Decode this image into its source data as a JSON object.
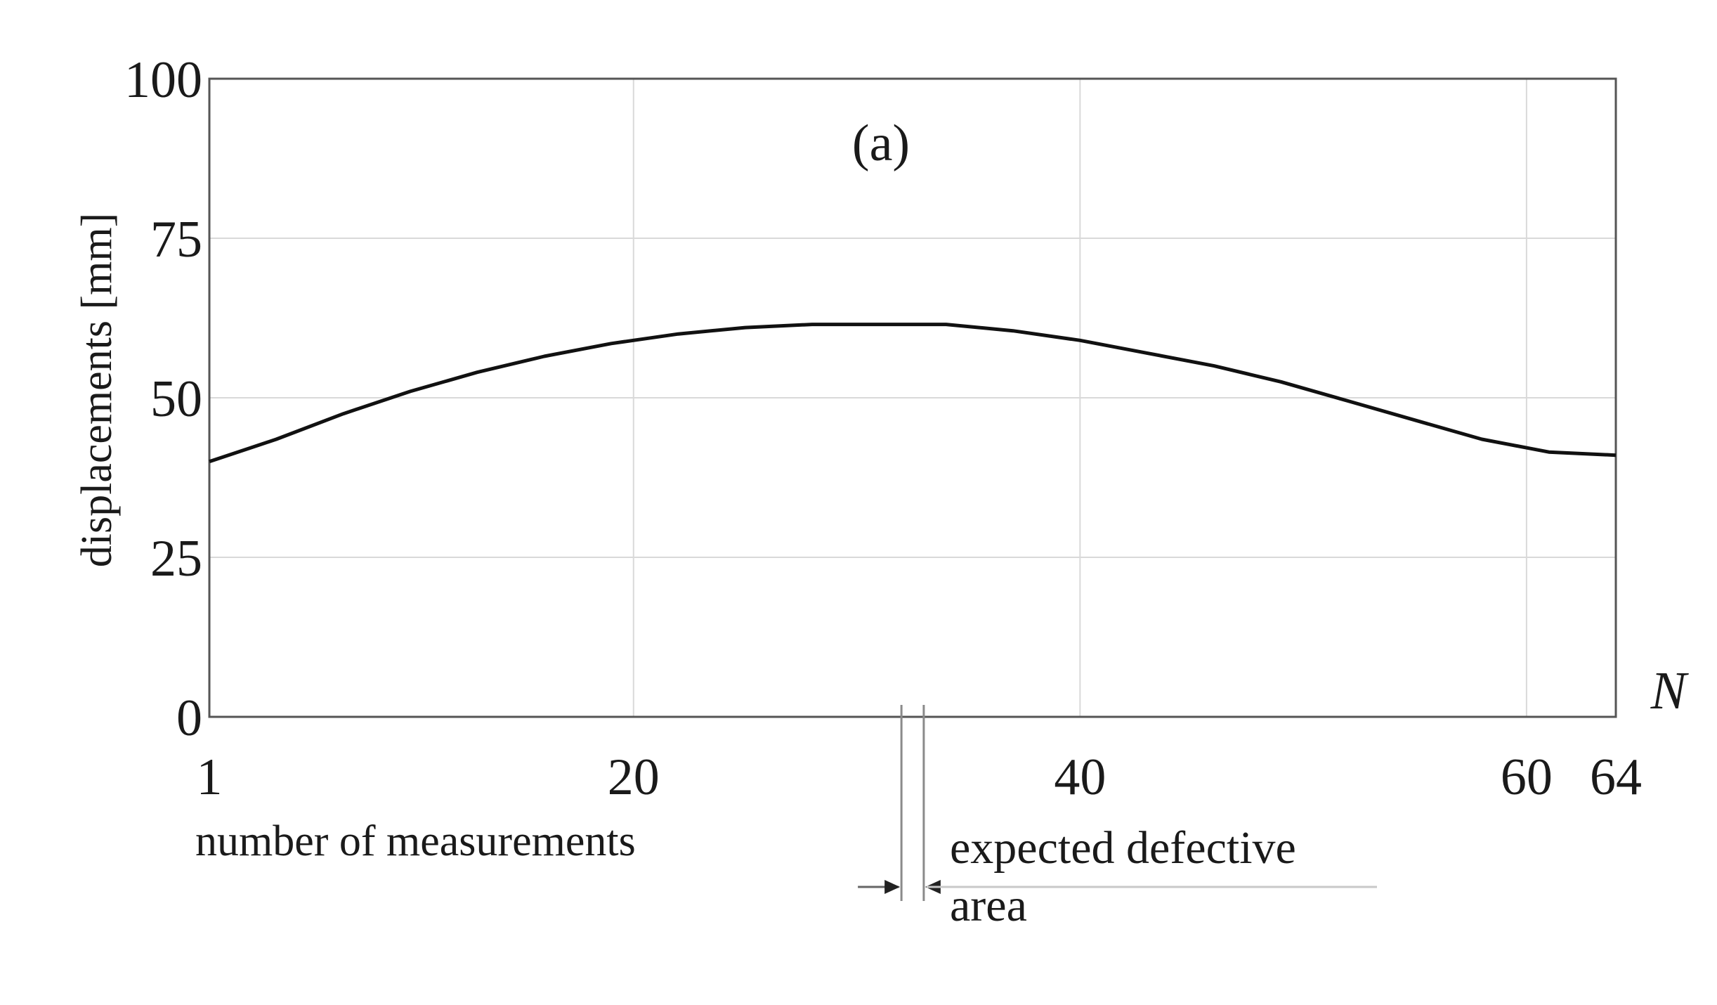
{
  "chart_data": {
    "type": "line",
    "title": "(a)",
    "xlabel": "number of measurements",
    "ylabel": "displacements [mm]",
    "x_axis_symbol": "N",
    "xlim": [
      1,
      64
    ],
    "ylim": [
      0,
      100
    ],
    "x_ticks": [
      1,
      20,
      40,
      60,
      64
    ],
    "y_ticks": [
      0,
      25,
      50,
      75,
      100
    ],
    "x_gridlines": [
      20,
      40,
      60
    ],
    "grid": true,
    "line_color": "#111111",
    "series": [
      {
        "x": [
          1,
          4,
          7,
          10,
          13,
          16,
          19,
          22,
          25,
          28,
          31,
          34,
          37,
          40,
          43,
          46,
          49,
          52,
          55,
          58,
          61,
          64
        ],
        "y": [
          40,
          43.5,
          47.5,
          51,
          54,
          56.5,
          58.5,
          60,
          61,
          61.5,
          61.5,
          61.5,
          60.5,
          59,
          57,
          55,
          52.5,
          49.5,
          46.5,
          43.5,
          41.5,
          41
        ]
      }
    ],
    "annotation": {
      "text_line1": "expected defective",
      "text_line2": "area",
      "x_from": 32,
      "x_to": 33
    }
  }
}
